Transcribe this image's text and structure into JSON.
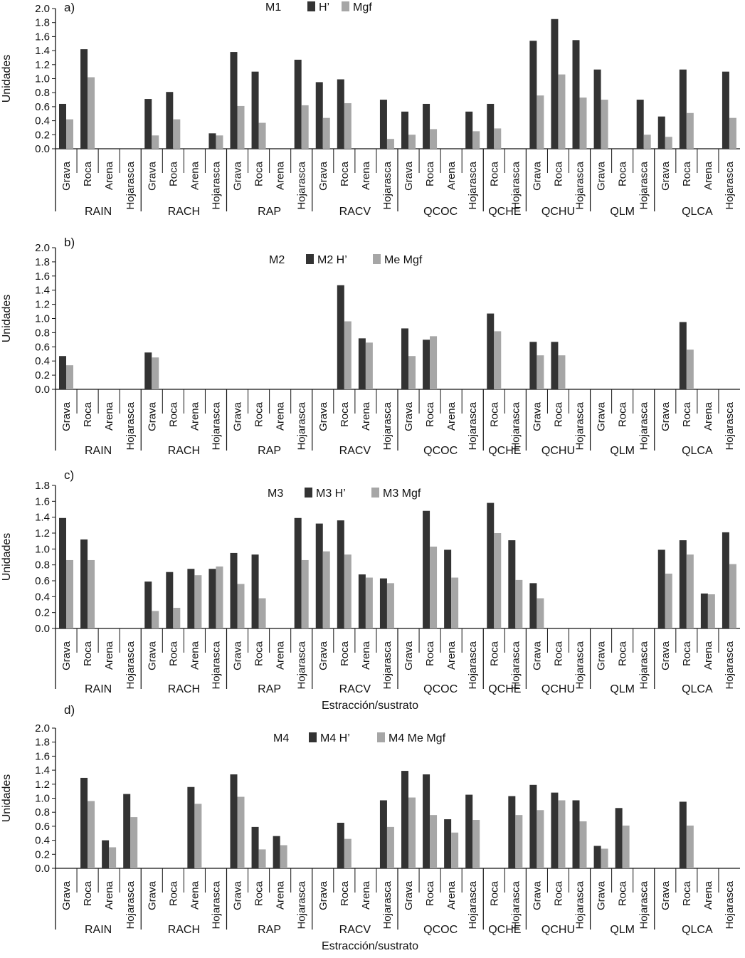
{
  "colors": {
    "h": "#333333",
    "mgf": "#a6a6a6",
    "axis": "#111111"
  },
  "chart_data": [
    {
      "type": "bar",
      "panel_label": "a)",
      "title": "M1",
      "ylabel": "Unidades",
      "xlabel": "",
      "ylim": [
        0,
        2.0
      ],
      "ticks": [
        "0.0",
        "0.2",
        "0.4",
        "0.6",
        "0.8",
        "1.0",
        "1.2",
        "1.4",
        "1.6",
        "1.8",
        "2.0"
      ],
      "series": [
        {
          "name": "H’",
          "values": [
            0.64,
            1.42,
            0,
            0,
            0.71,
            0.81,
            0,
            0.22,
            1.38,
            1.1,
            0,
            1.27,
            0.95,
            0.99,
            0,
            0.7,
            0.53,
            0.64,
            0,
            0.53,
            0.64,
            0,
            1.54,
            1.85,
            1.55,
            1.13,
            0,
            0.7,
            0.46,
            1.13,
            0,
            1.1
          ]
        },
        {
          "name": "Mgf",
          "values": [
            0.42,
            1.02,
            0,
            0,
            0.19,
            0.42,
            0,
            0.19,
            0.61,
            0.37,
            0,
            0.62,
            0.44,
            0.65,
            0,
            0.14,
            0.2,
            0.28,
            0,
            0.25,
            0.29,
            0,
            0.76,
            1.06,
            0.73,
            0.7,
            0,
            0.2,
            0.17,
            0.51,
            0,
            0.44
          ]
        }
      ],
      "groups": [
        {
          "name": "RAIN",
          "categories": [
            "Grava",
            "Roca",
            "Arena",
            "Hojarasca"
          ]
        },
        {
          "name": "RACH",
          "categories": [
            "Grava",
            "Roca",
            "Arena",
            "Hojarasca"
          ]
        },
        {
          "name": "RAP",
          "categories": [
            "Grava",
            "Roca",
            "Arena",
            "Hojarasca"
          ]
        },
        {
          "name": "RACV",
          "categories": [
            "Grava",
            "Roca",
            "Arena",
            "Hojarasca"
          ]
        },
        {
          "name": "QCOC",
          "categories": [
            "Grava",
            "Roca",
            "Arena",
            "Hojarasca"
          ]
        },
        {
          "name": "QCHE",
          "categories": [
            "Roca",
            "Hojarasca"
          ]
        },
        {
          "name": "QCHU",
          "categories": [
            "Grava",
            "Roca",
            "Hojarasca"
          ]
        },
        {
          "name": "QLM",
          "categories": [
            "Grava",
            "Roca",
            "Hojarasca"
          ]
        },
        {
          "name": "QLCA",
          "categories": [
            "Grava",
            "Roca",
            "Arena",
            "Hojarasca"
          ]
        }
      ]
    },
    {
      "type": "bar",
      "panel_label": "b)",
      "title": "M2",
      "ylabel": "Unidades",
      "xlabel": "",
      "ylim": [
        0,
        2.0
      ],
      "ticks": [
        "0.0",
        "0.2",
        "0.4",
        "0.6",
        "0.8",
        "1.0",
        "1.2",
        "1.4",
        "1.6",
        "1.8",
        "2.0"
      ],
      "series": [
        {
          "name": "M2 H’",
          "values": [
            0.47,
            0,
            0,
            0,
            0.52,
            0,
            0,
            0,
            0,
            0,
            0,
            0,
            0,
            1.47,
            0.72,
            0,
            0.86,
            0.7,
            0,
            0,
            1.07,
            0,
            0.67,
            0.67,
            0,
            0,
            0,
            0,
            0,
            0.95,
            0,
            0
          ]
        },
        {
          "name": "Me Mgf",
          "values": [
            0.34,
            0,
            0,
            0,
            0.45,
            0,
            0,
            0,
            0,
            0,
            0,
            0,
            0,
            0.96,
            0.66,
            0,
            0.47,
            0.75,
            0,
            0,
            0.82,
            0,
            0.48,
            0.48,
            0,
            0,
            0,
            0,
            0,
            0.56,
            0,
            0
          ]
        }
      ],
      "groups": [
        {
          "name": "RAIN",
          "categories": [
            "Grava",
            "Roca",
            "Arena",
            "Hojarasca"
          ]
        },
        {
          "name": "RACH",
          "categories": [
            "Grava",
            "Roca",
            "Arena",
            "Hojarasca"
          ]
        },
        {
          "name": "RAP",
          "categories": [
            "Grava",
            "Roca",
            "Arena",
            "Hojarasca"
          ]
        },
        {
          "name": "RACV",
          "categories": [
            "Grava",
            "Roca",
            "Arena",
            "Hojarasca"
          ]
        },
        {
          "name": "QCOC",
          "categories": [
            "Grava",
            "Roca",
            "Arena",
            "Hojarasca"
          ]
        },
        {
          "name": "QCHE",
          "categories": [
            "Roca",
            "Hojarasca"
          ]
        },
        {
          "name": "QCHU",
          "categories": [
            "Grava",
            "Roca",
            "Hojarasca"
          ]
        },
        {
          "name": "QLM",
          "categories": [
            "Grava",
            "Roca",
            "Hojarasca"
          ]
        },
        {
          "name": "QLCA",
          "categories": [
            "Grava",
            "Roca",
            "Arena",
            "Hojarasca"
          ]
        }
      ]
    },
    {
      "type": "bar",
      "panel_label": "c)",
      "title": "M3",
      "ylabel": "Unidades",
      "xlabel": "Estracción/sustrato",
      "ylim": [
        0,
        1.8
      ],
      "ticks": [
        "0.0",
        "0.2",
        "0.4",
        "0.6",
        "0.8",
        "1.0",
        "1.2",
        "1.4",
        "1.6",
        "1.8"
      ],
      "series": [
        {
          "name": "M3 H’",
          "values": [
            1.39,
            1.12,
            0,
            0,
            0.59,
            0.71,
            0.75,
            0.75,
            0.95,
            0.93,
            0,
            1.39,
            1.32,
            1.36,
            0.68,
            0.63,
            0,
            1.48,
            0.99,
            0,
            1.58,
            1.11,
            0.57,
            0,
            0,
            0,
            0,
            0,
            0.99,
            1.11,
            0.44,
            1.21
          ]
        },
        {
          "name": "M3 Mgf",
          "values": [
            0.86,
            0.86,
            0,
            0,
            0.22,
            0.26,
            0.67,
            0.78,
            0.56,
            0.38,
            0,
            0.86,
            0.97,
            0.93,
            0.64,
            0.57,
            0,
            1.03,
            0.64,
            0,
            1.2,
            0.61,
            0.38,
            0,
            0,
            0,
            0,
            0,
            0.69,
            0.93,
            0.43,
            0.81
          ]
        }
      ],
      "groups": [
        {
          "name": "RAIN",
          "categories": [
            "Grava",
            "Roca",
            "Arena",
            "Hojarasca"
          ]
        },
        {
          "name": "RACH",
          "categories": [
            "Grava",
            "Roca",
            "Arena",
            "Hojarasca"
          ]
        },
        {
          "name": "RAP",
          "categories": [
            "Grava",
            "Roca",
            "Arena",
            "Hojarasca"
          ]
        },
        {
          "name": "RACV",
          "categories": [
            "Grava",
            "Roca",
            "Arena",
            "Hojarasca"
          ]
        },
        {
          "name": "QCOC",
          "categories": [
            "Grava",
            "Roca",
            "Arena",
            "Hojarasca"
          ]
        },
        {
          "name": "QCHE",
          "categories": [
            "Roca",
            "Hojarasca"
          ]
        },
        {
          "name": "QCHU",
          "categories": [
            "Grava",
            "Roca",
            "Hojarasca"
          ]
        },
        {
          "name": "QLM",
          "categories": [
            "Grava",
            "Roca",
            "Hojarasca"
          ]
        },
        {
          "name": "QLCA",
          "categories": [
            "Grava",
            "Roca",
            "Arena",
            "Hojarasca"
          ]
        }
      ]
    },
    {
      "type": "bar",
      "panel_label": "d)",
      "title": "M4",
      "ylabel": "Unidades",
      "xlabel": "Estracción/sustrato",
      "ylim": [
        0,
        2.0
      ],
      "ticks": [
        "0.0",
        "0.2",
        "0.4",
        "0.6",
        "0.8",
        "1.0",
        "1.2",
        "1.4",
        "1.6",
        "1.8",
        "2.0"
      ],
      "series": [
        {
          "name": "M4 H’",
          "values": [
            0,
            1.29,
            0.4,
            1.06,
            0,
            0,
            1.16,
            0,
            1.34,
            0.59,
            0.46,
            0,
            0,
            0.65,
            0,
            0.97,
            1.39,
            1.34,
            0.7,
            1.05,
            0,
            1.03,
            1.19,
            1.08,
            0.97,
            0.32,
            0.86,
            0,
            0,
            0.95,
            0,
            0
          ]
        },
        {
          "name": "M4 Me Mgf",
          "values": [
            0,
            0.96,
            0.3,
            0.73,
            0,
            0,
            0.92,
            0,
            1.02,
            0.27,
            0.33,
            0,
            0,
            0.42,
            0,
            0.59,
            1.01,
            0.76,
            0.51,
            0.69,
            0,
            0.76,
            0.83,
            0.97,
            0.67,
            0.28,
            0.61,
            0,
            0,
            0.61,
            0,
            0
          ]
        }
      ],
      "groups": [
        {
          "name": "RAIN",
          "categories": [
            "Grava",
            "Roca",
            "Arena",
            "Hojarasca"
          ]
        },
        {
          "name": "RACH",
          "categories": [
            "Grava",
            "Roca",
            "Arena",
            "Hojarasca"
          ]
        },
        {
          "name": "RAP",
          "categories": [
            "Grava",
            "Roca",
            "Arena",
            "Hojarasca"
          ]
        },
        {
          "name": "RACV",
          "categories": [
            "Grava",
            "Roca",
            "Arena",
            "Hojarasca"
          ]
        },
        {
          "name": "QCOC",
          "categories": [
            "Grava",
            "Roca",
            "Arena",
            "Hojarasca"
          ]
        },
        {
          "name": "QCHE",
          "categories": [
            "Roca",
            "Hojarasca"
          ]
        },
        {
          "name": "QCHU",
          "categories": [
            "Grava",
            "Roca",
            "Hojarasca"
          ]
        },
        {
          "name": "QLM",
          "categories": [
            "Grava",
            "Roca",
            "Hojarasca"
          ]
        },
        {
          "name": "QLCA",
          "categories": [
            "Grava",
            "Roca",
            "Arena",
            "Hojarasca"
          ]
        }
      ]
    }
  ]
}
